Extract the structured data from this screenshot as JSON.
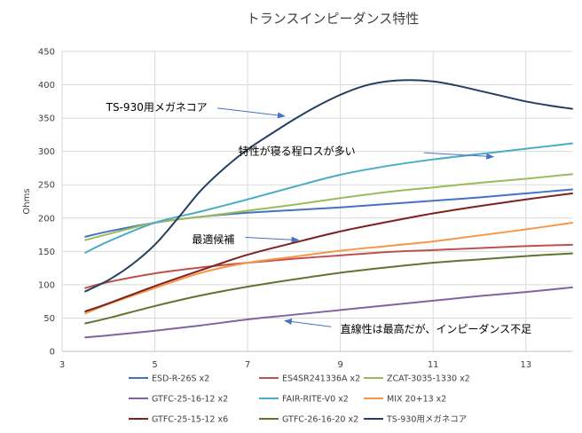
{
  "chart_data": {
    "type": "line",
    "title": "トランスインピーダンス特性",
    "xlabel": "",
    "ylabel": "Ohms",
    "xlim": [
      3,
      14
    ],
    "ylim": [
      0,
      450
    ],
    "xticks": [
      3,
      5,
      7,
      9,
      11,
      13
    ],
    "yticks": [
      0,
      50,
      100,
      150,
      200,
      250,
      300,
      350,
      400,
      450
    ],
    "grid": true,
    "legend_position": "bottom",
    "series": [
      {
        "name": "ESD-R-26S x2",
        "color": "#4472c4",
        "x": [
          3.5,
          4,
          5,
          6,
          7,
          8,
          9,
          10,
          11,
          12,
          13,
          14
        ],
        "y": [
          172,
          180,
          193,
          202,
          208,
          212,
          216,
          221,
          226,
          231,
          237,
          243
        ]
      },
      {
        "name": "ES4SR241336A x2",
        "color": "#c0504d",
        "x": [
          3.5,
          4,
          5,
          6,
          7,
          8,
          9,
          10,
          11,
          12,
          13,
          14
        ],
        "y": [
          95,
          104,
          117,
          126,
          133,
          139,
          144,
          149,
          152,
          155,
          158,
          160
        ]
      },
      {
        "name": "ZCAT-3035-1330 x2",
        "color": "#9bbb59",
        "x": [
          3.5,
          4,
          5,
          6,
          7,
          8,
          9,
          10,
          11,
          12,
          13,
          14
        ],
        "y": [
          167,
          176,
          193,
          202,
          211,
          220,
          230,
          239,
          246,
          253,
          259,
          266
        ]
      },
      {
        "name": "GTFC-25-16-12 x2",
        "color": "#8064a2",
        "x": [
          3.5,
          4,
          5,
          6,
          7,
          8,
          9,
          10,
          11,
          12,
          13,
          14
        ],
        "y": [
          21,
          24,
          31,
          39,
          48,
          55,
          62,
          69,
          76,
          83,
          89,
          96
        ]
      },
      {
        "name": "FAIR-RITE-V0 x2",
        "color": "#4bacc6",
        "x": [
          3.5,
          4,
          5,
          6,
          7,
          8,
          9,
          10,
          11,
          12,
          13,
          14
        ],
        "y": [
          148,
          165,
          193,
          210,
          228,
          247,
          265,
          278,
          288,
          296,
          304,
          312
        ]
      },
      {
        "name": "MIX 20+13 x2",
        "color": "#f79646",
        "x": [
          3.5,
          4,
          5,
          6,
          7,
          8,
          9,
          10,
          11,
          12,
          13,
          14
        ],
        "y": [
          57,
          71,
          95,
          118,
          133,
          142,
          151,
          158,
          165,
          174,
          183,
          193
        ]
      },
      {
        "name": "GTFC-25-15-12 x6",
        "color": "#7f2020",
        "x": [
          3.5,
          4,
          5,
          6,
          7,
          8,
          9,
          10,
          11,
          12,
          13,
          14
        ],
        "y": [
          60,
          72,
          98,
          122,
          145,
          163,
          180,
          194,
          207,
          218,
          228,
          237
        ]
      },
      {
        "name": "GTFC-26-16-20 x2",
        "color": "#5f7530",
        "x": [
          3.5,
          4,
          5,
          6,
          7,
          8,
          9,
          10,
          11,
          12,
          13,
          14
        ],
        "y": [
          42,
          50,
          68,
          84,
          97,
          108,
          118,
          126,
          133,
          138,
          143,
          147
        ]
      },
      {
        "name": "TS-930用メガネコア",
        "color": "#243f60",
        "x": [
          3.5,
          4,
          4.5,
          5,
          5.5,
          6,
          6.5,
          7,
          7.5,
          8,
          8.5,
          9,
          9.5,
          10,
          10.5,
          11,
          11.5,
          12,
          12.5,
          13,
          13.5,
          14
        ],
        "y": [
          90,
          107,
          130,
          160,
          200,
          242,
          275,
          303,
          326,
          348,
          368,
          385,
          398,
          405,
          407,
          405,
          399,
          391,
          383,
          375,
          369,
          364
        ]
      }
    ],
    "annotations": [
      {
        "id": "a1",
        "text": "TS-930用メガネコア",
        "label_x": 3.95,
        "label_y": 366,
        "arrow_from": [
          6.35,
          365
        ],
        "arrow_to": [
          7.8,
          353
        ]
      },
      {
        "id": "a2",
        "text": "特性が寝る程ロスが多い",
        "label_x": 6.8,
        "label_y": 300,
        "arrow_from": [
          10.8,
          298
        ],
        "arrow_to": [
          12.3,
          292
        ]
      },
      {
        "name_note": "",
        "id": "a3",
        "text": "最適候補",
        "label_x": 5.8,
        "label_y": 168,
        "arrow_from": [
          6.95,
          171
        ],
        "arrow_to": [
          8.1,
          167
        ]
      },
      {
        "id": "a4",
        "text": "直線性は最高だが、インピーダンス不足",
        "label_x": 9.0,
        "label_y": 33,
        "arrow_from": [
          8.8,
          37
        ],
        "arrow_to": [
          7.8,
          46
        ]
      }
    ]
  }
}
